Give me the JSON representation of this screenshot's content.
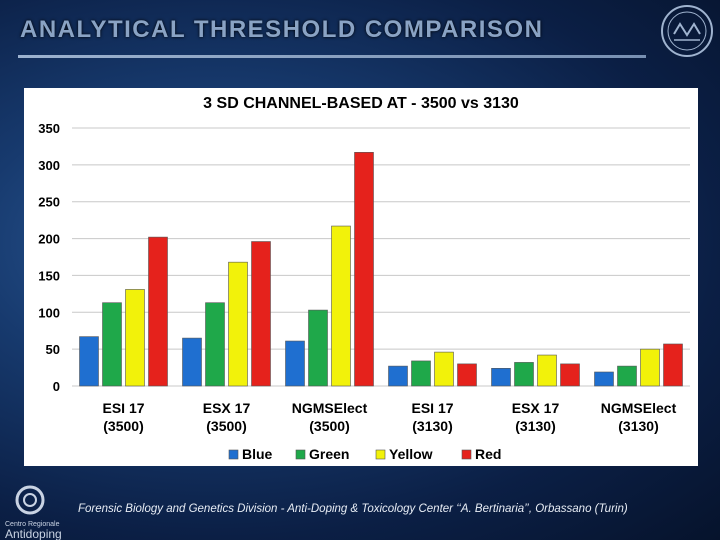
{
  "slide": {
    "title": "ANALYTICAL THRESHOLD COMPARISON",
    "footer": "Forensic Biology  and Genetics Division - Anti-Doping & Toxicology Center ‘‘A. Bertinaria’’, Orbassano (Turin)",
    "logo_line1": "Centro Regionale",
    "logo_line2": "Antidoping"
  },
  "chart_data": {
    "type": "bar",
    "title": "3 SD CHANNEL-BASED AT - 3500 vs 3130",
    "categories": [
      [
        "ESI 17",
        "(3500)"
      ],
      [
        "ESX 17",
        "(3500)"
      ],
      [
        "NGMSElect",
        "(3500)"
      ],
      [
        "ESI 17",
        "(3130)"
      ],
      [
        "ESX 17",
        "(3130)"
      ],
      [
        "NGMSElect",
        "(3130)"
      ]
    ],
    "series": [
      {
        "name": "Blue",
        "color": "#1f6fd0",
        "values": [
          67,
          65,
          61,
          27,
          24,
          19
        ]
      },
      {
        "name": "Green",
        "color": "#1fa84a",
        "values": [
          113,
          113,
          103,
          34,
          32,
          27
        ]
      },
      {
        "name": "Yellow",
        "color": "#f2f20a",
        "values": [
          131,
          168,
          217,
          46,
          42,
          50
        ]
      },
      {
        "name": "Red",
        "color": "#e5221c",
        "values": [
          202,
          196,
          317,
          30,
          30,
          57
        ]
      }
    ],
    "ylim": [
      0,
      350
    ],
    "yticks": [
      0,
      50,
      100,
      150,
      200,
      250,
      300,
      350
    ],
    "grid": true,
    "legend": "bottom",
    "xlabel": "",
    "ylabel": ""
  }
}
